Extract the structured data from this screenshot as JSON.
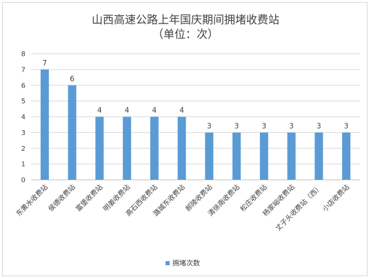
{
  "chart_data": {
    "type": "bar",
    "title": "山西高速公路上年国庆期间拥堵收费站",
    "subtitle": "（单位：次）",
    "xlabel": "",
    "ylabel": "",
    "ylim": [
      0,
      8
    ],
    "yticks": [
      0,
      1,
      2,
      3,
      4,
      5,
      6,
      7,
      8
    ],
    "grid": true,
    "legend_position": "bottom",
    "categories": [
      "东黄水收费站",
      "侯德收费站",
      "富堡收费站",
      "明姜收费站",
      "高石西收费站",
      "潞城东收费站",
      "郝陵收费站",
      "清徐南收费站",
      "松庄收费站",
      "杨家峪收费站",
      "丈子头收费站（西）",
      "小店收费站"
    ],
    "series": [
      {
        "name": "拥堵次数",
        "color": "#5b9bd5",
        "values": [
          7,
          6,
          4,
          4,
          4,
          4,
          3,
          3,
          3,
          3,
          3,
          3
        ]
      }
    ]
  }
}
